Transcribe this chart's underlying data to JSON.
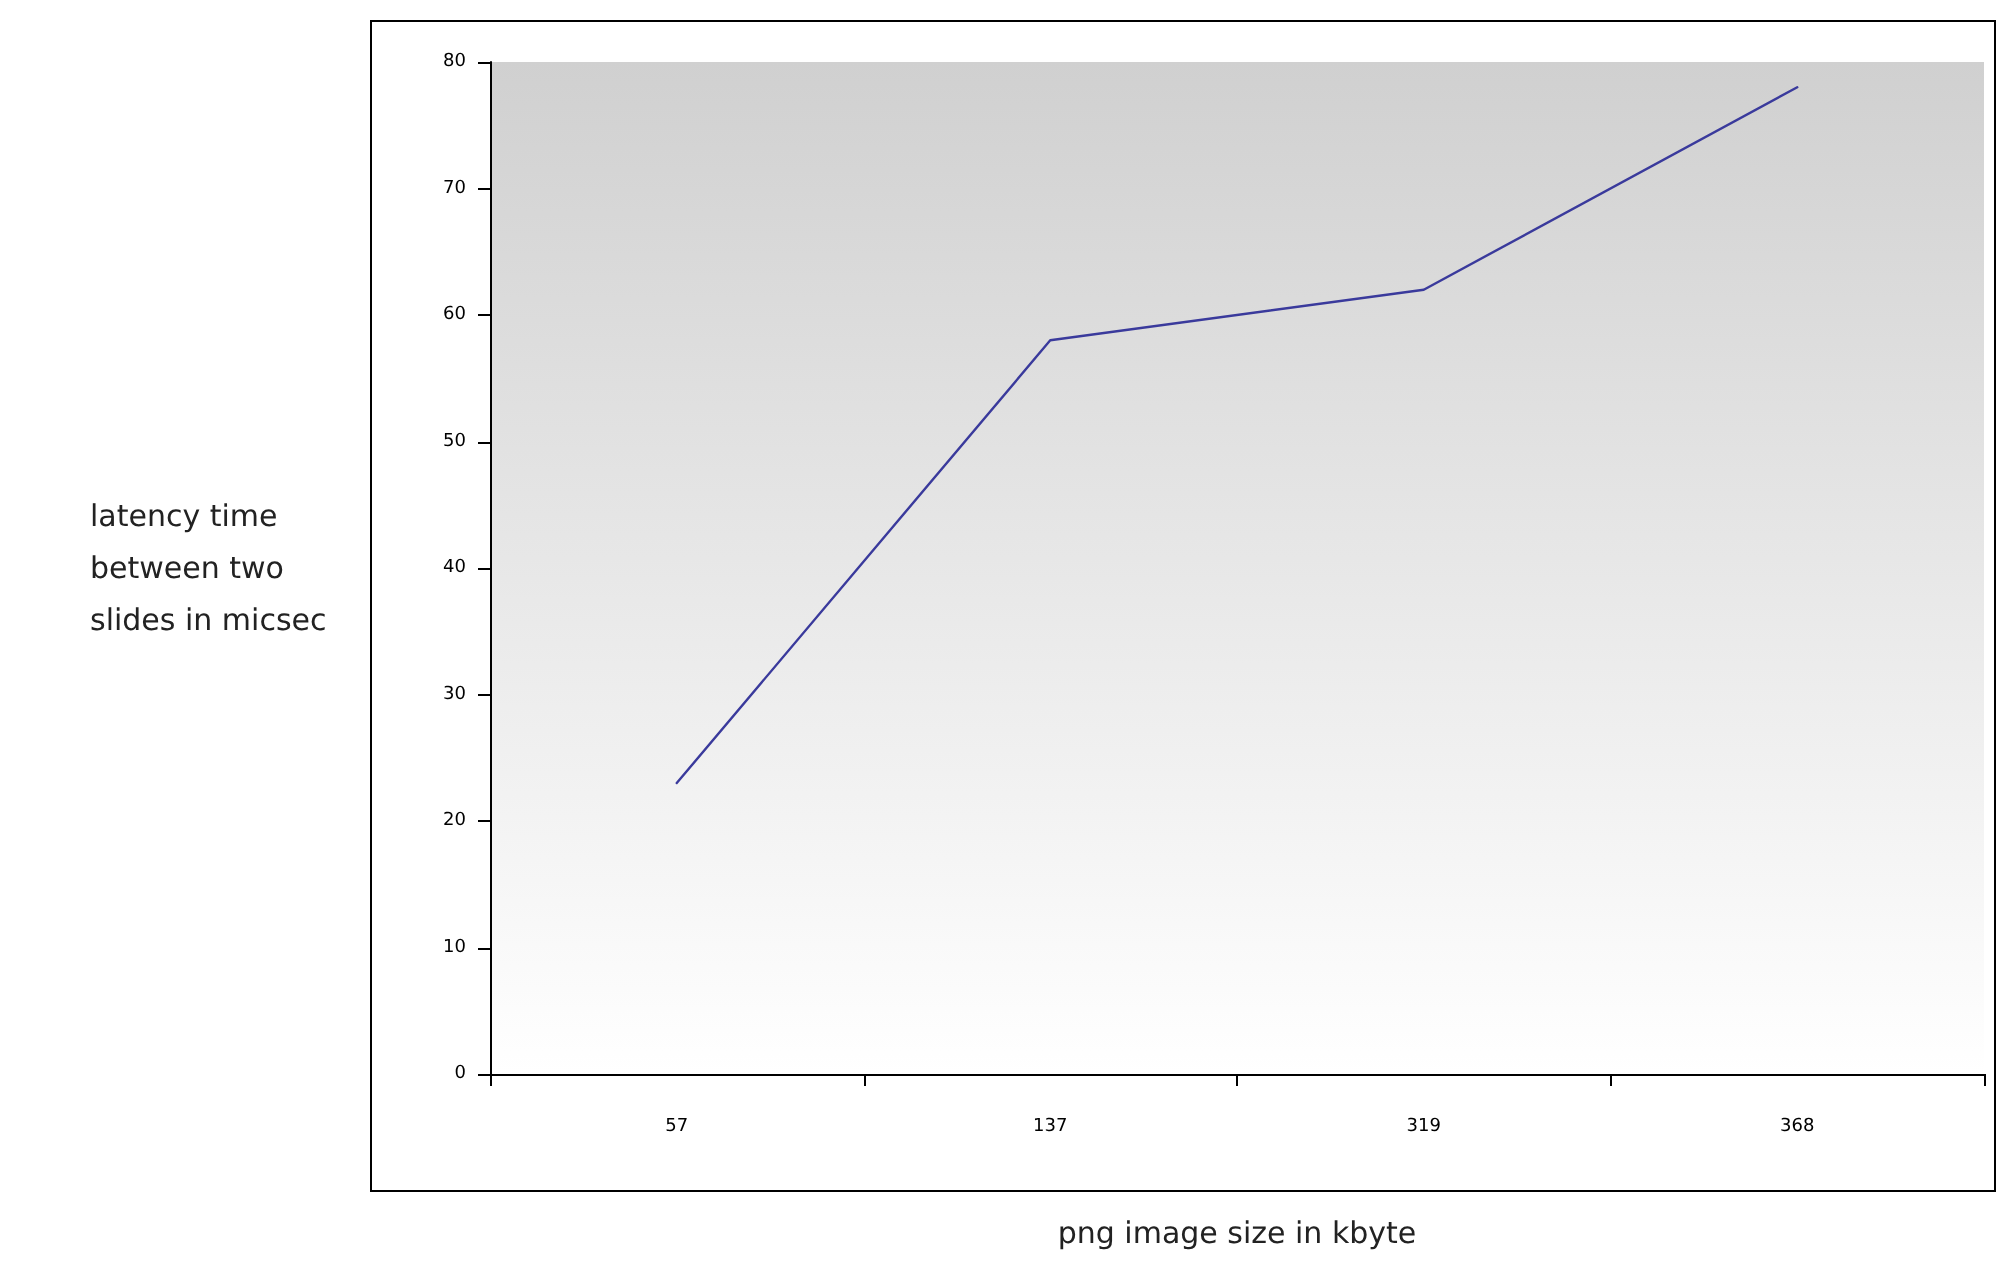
{
  "chart_data": {
    "type": "line",
    "xlabel": "png image size in kbyte",
    "ylabel": "latency time between two slides in micsec",
    "categories": [
      "57",
      "137",
      "319",
      "368"
    ],
    "series": [
      {
        "color": "#3a3a9c",
        "values": [
          23,
          58,
          62,
          78
        ]
      }
    ],
    "ylim": [
      0,
      80
    ],
    "yticks": [
      0,
      10,
      20,
      30,
      40,
      50,
      60,
      70,
      80
    ],
    "grid": false,
    "marker": "none",
    "line_style": "solid"
  }
}
